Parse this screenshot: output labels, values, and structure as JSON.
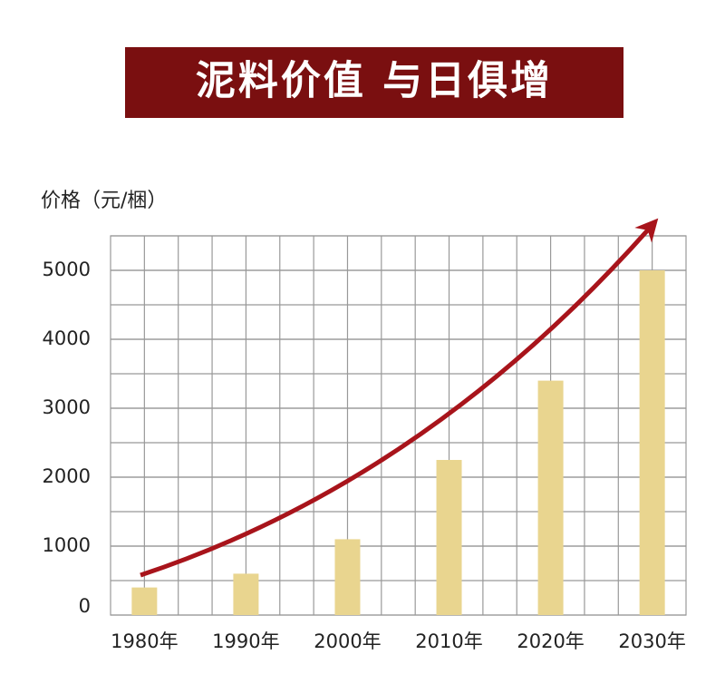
{
  "chart_data": {
    "type": "bar",
    "title": "泥料价值 与日俱增",
    "y_label": "价格（元/梱）",
    "categories": [
      "1980年",
      "1990年",
      "2000年",
      "2010年",
      "2020年",
      "2030年"
    ],
    "values": [
      400,
      600,
      1100,
      2250,
      3400,
      5000
    ],
    "color": "#e9d58f",
    "ylim": [
      0,
      5500
    ],
    "yticks": [
      0,
      1000,
      2000,
      3000,
      4000,
      5000
    ],
    "grid": true
  }
}
